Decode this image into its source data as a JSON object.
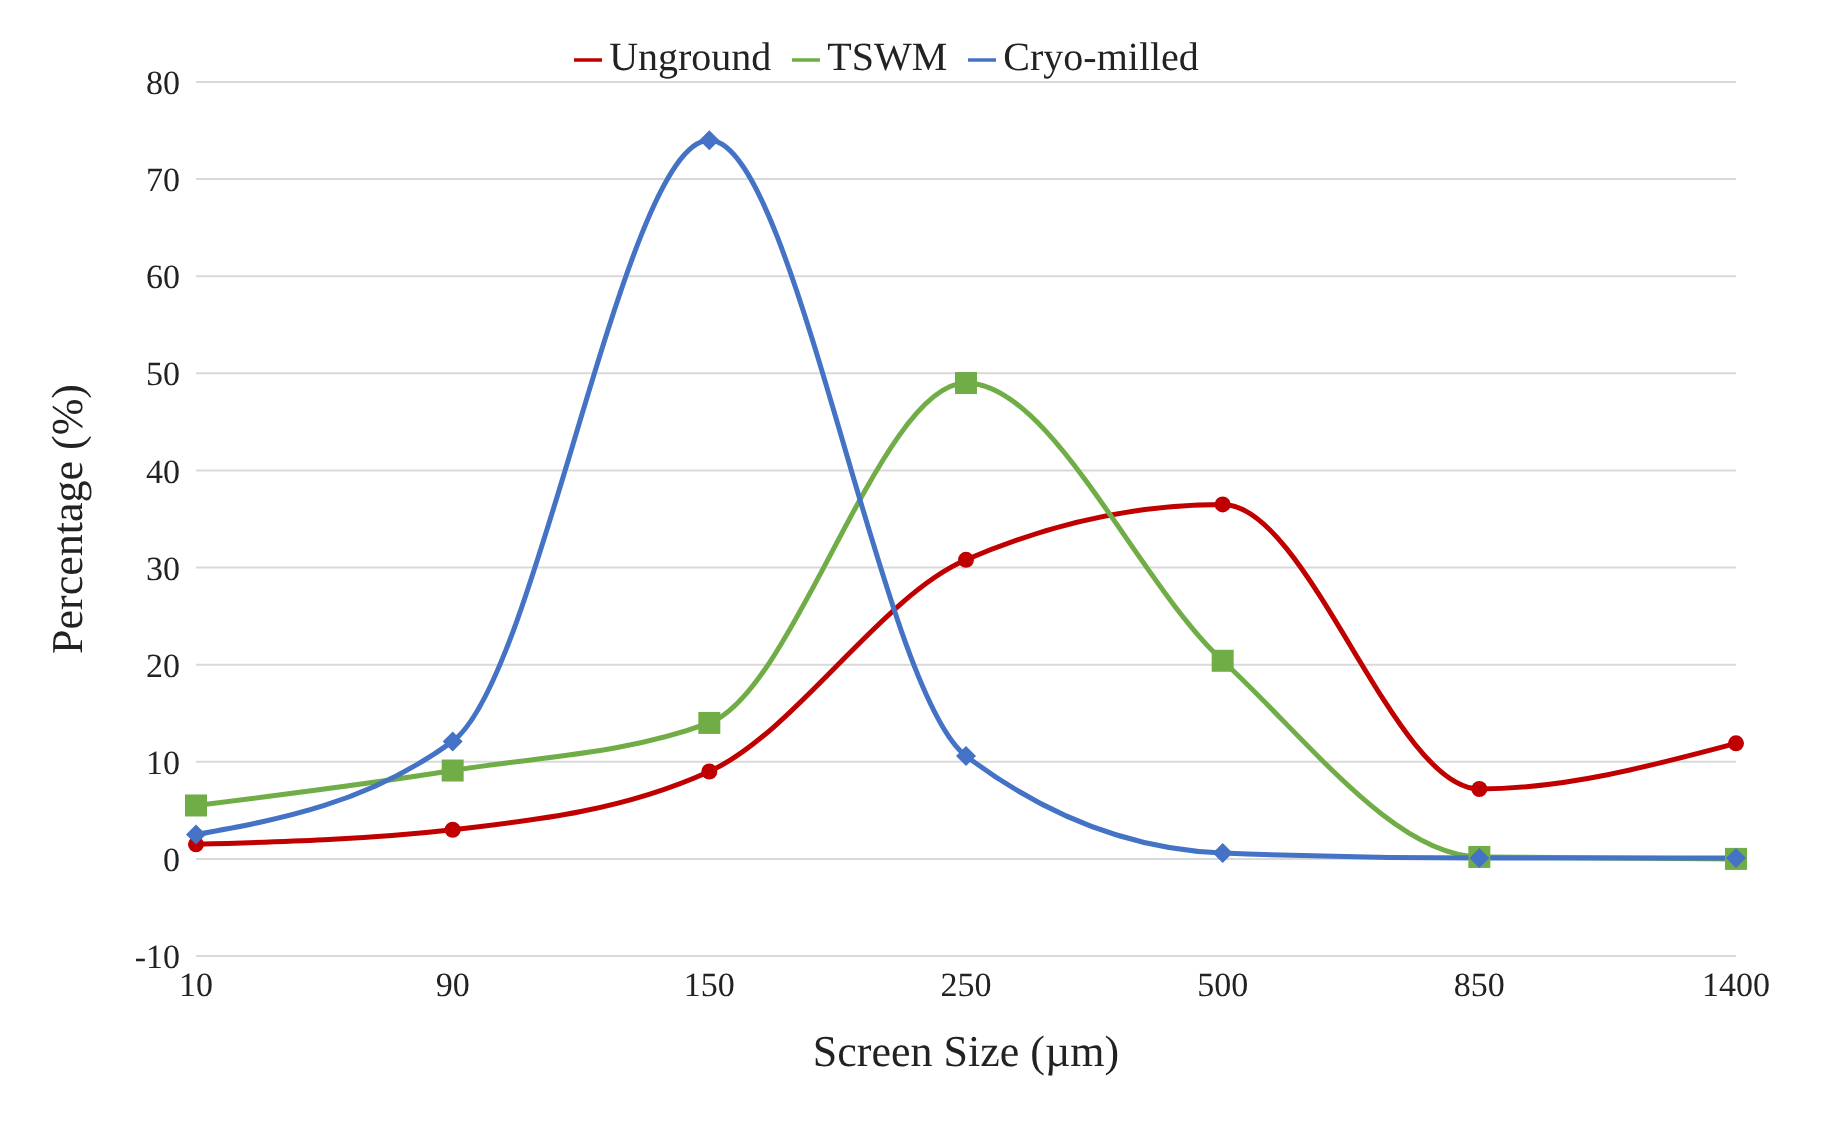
{
  "chart_data": {
    "type": "line",
    "xlabel": "Screen Size (µm)",
    "ylabel": "Percentage (%)",
    "categories": [
      "10",
      "90",
      "150",
      "250",
      "500",
      "850",
      "1400"
    ],
    "series": [
      {
        "name": "Unground",
        "color": "#c00000",
        "marker": "circle",
        "values": [
          1.5,
          3,
          9,
          30.8,
          36.5,
          7.2,
          11.9
        ]
      },
      {
        "name": "TSWM",
        "color": "#70ad47",
        "marker": "square",
        "values": [
          5.5,
          9.1,
          14,
          49,
          20.4,
          0.2,
          0
        ]
      },
      {
        "name": "Cryo-milled",
        "color": "#4472c4",
        "marker": "diamond",
        "values": [
          2.5,
          12.1,
          74,
          10.6,
          0.6,
          0.1,
          0.1
        ]
      }
    ],
    "ylim": [
      -10,
      80
    ],
    "yticks": [
      -10,
      0,
      10,
      20,
      30,
      40,
      50,
      60,
      70,
      80
    ],
    "grid": "y",
    "legend": "top",
    "line_style": "solid"
  }
}
